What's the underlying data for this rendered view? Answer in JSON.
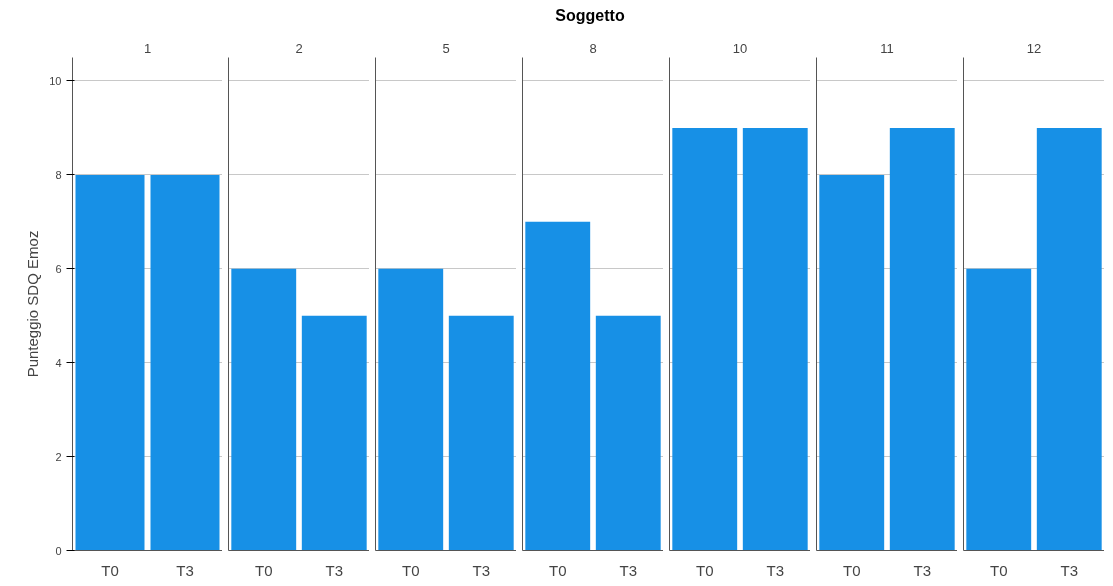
{
  "chart_data": [
    {
      "type": "bar",
      "title": "1",
      "ylabel": "Punteggio SDQ Emoz",
      "annotations": [
        "Soggetto"
      ],
      "categories": [
        "T0",
        "T3"
      ],
      "values": [
        8,
        8
      ],
      "color": "#1790e6",
      "ylim": [
        0,
        10.5
      ],
      "yticks": [
        0,
        2,
        4,
        6,
        8,
        10
      ],
      "grid": "y"
    },
    {
      "type": "bar",
      "title": "2",
      "categories": [
        "T0",
        "T3"
      ],
      "values": [
        6,
        5
      ],
      "color": "#1790e6",
      "ylim": [
        0,
        10.5
      ],
      "yticks": [
        0,
        2,
        4,
        6,
        8,
        10
      ],
      "grid": "y",
      "tick_labels": "x"
    },
    {
      "type": "bar",
      "title": "5",
      "categories": [
        "T0",
        "T3"
      ],
      "values": [
        6,
        5
      ],
      "color": "#1790e6",
      "ylim": [
        0,
        10.5
      ],
      "yticks": [
        0,
        2,
        4,
        6,
        8,
        10
      ],
      "grid": "y",
      "tick_labels": "x"
    },
    {
      "type": "bar",
      "title": "8",
      "categories": [
        "T0",
        "T3"
      ],
      "values": [
        7,
        5
      ],
      "color": "#1790e6",
      "ylim": [
        0,
        10.5
      ],
      "yticks": [
        0,
        2,
        4,
        6,
        8,
        10
      ],
      "grid": "y",
      "tick_labels": "x"
    },
    {
      "type": "bar",
      "title": "10",
      "categories": [
        "T0",
        "T3"
      ],
      "values": [
        9,
        9
      ],
      "color": "#1790e6",
      "ylim": [
        0,
        10.5
      ],
      "yticks": [
        0,
        2,
        4,
        6,
        8,
        10
      ],
      "grid": "y",
      "tick_labels": "x"
    },
    {
      "type": "bar",
      "title": "11",
      "categories": [
        "T0",
        "T3"
      ],
      "values": [
        8,
        9
      ],
      "color": "#1790e6",
      "ylim": [
        0,
        10.5
      ],
      "yticks": [
        0,
        2,
        4,
        6,
        8,
        10
      ],
      "grid": "y",
      "tick_labels": "x"
    },
    {
      "type": "bar",
      "title": "12",
      "categories": [
        "T0",
        "T3"
      ],
      "values": [
        6,
        9
      ],
      "color": "#1790e6",
      "ylim": [
        0,
        10.5
      ],
      "yticks": [
        0,
        2,
        4,
        6,
        8,
        10
      ],
      "grid": "y",
      "tick_labels": "x"
    }
  ]
}
